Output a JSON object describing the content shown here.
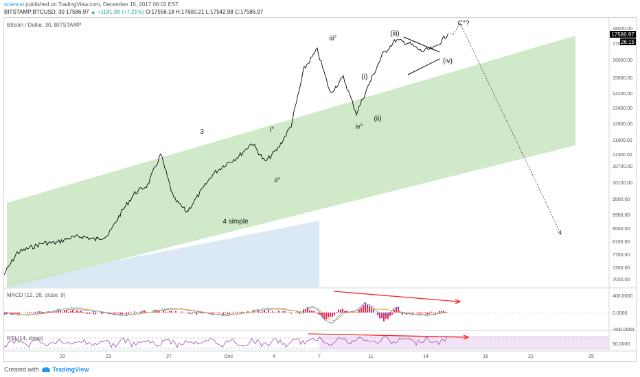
{
  "header": {
    "user": "sciencei",
    "published": "published on TradingView.com, December 15, 2017 06:03 EST",
    "symbol": "BITSTAMP:BTCUSD, 30",
    "last": "17586.97",
    "change": "▲ +1181.98 (+7.21%)",
    "o": "O:17556.18",
    "h": "H:17600.21",
    "l": "L:17542.98",
    "c": "C:17586.97"
  },
  "pane_title": "Bitcoin / Dollar, 30, BITSTAMP",
  "macd_title": "MACD (12, 26, close, 9)",
  "rsi_title": "RSI (14, close)",
  "footer": {
    "created": "Created with",
    "brand": "TradingView"
  },
  "colors": {
    "channel": "#c8e6c0",
    "lower_box": "#dbe9f5",
    "divergence": "#ff2020",
    "macd_line": "#2196f3",
    "signal_line": "#ff9800",
    "histogram": "#e91e63",
    "rsi": "#9c27b0",
    "price_tag": "#000000"
  },
  "chart_data": {
    "type": "line",
    "title": "Bitcoin / Dollar, 30, BITSTAMP",
    "x_tick_labels": [
      "20",
      "23",
      "27",
      "Dec",
      "4",
      "7",
      "11",
      "14",
      "18",
      "21",
      "25"
    ],
    "price_ticks": [
      "18000.00",
      "17000.00",
      "16000.00",
      "15000.00",
      "14200.00",
      "13400.00",
      "12600.00",
      "11800.00",
      "11300.00",
      "10700.00",
      "10100.00",
      "9500.00",
      "8900.00",
      "8500.00",
      "8100.00",
      "7700.00",
      "7350.00",
      "7030.00"
    ],
    "macd_ticks": [
      "400.0000",
      "0.0000",
      "-400.0000"
    ],
    "rsi_ticks": [
      "50.0000"
    ],
    "last_price_tag": "17586.97",
    "countdown_tag": "26:15",
    "wave_labels": [
      "3",
      "4 simple",
      "i°",
      "ii°",
      "iii°",
      "iv°",
      "(i)",
      "(ii)",
      "(iii)",
      "(iv)",
      "C°?"
    ],
    "price_series": [
      {
        "date": "Nov 17",
        "value": 7150
      },
      {
        "date": "Nov 18",
        "value": 7750
      },
      {
        "date": "Nov 19",
        "value": 7900
      },
      {
        "date": "Nov 20",
        "value": 8050
      },
      {
        "date": "Nov 21",
        "value": 8050
      },
      {
        "date": "Nov 22",
        "value": 8200
      },
      {
        "date": "Nov 23",
        "value": 8250
      },
      {
        "date": "Nov 24",
        "value": 8150
      },
      {
        "date": "Nov 25",
        "value": 8300
      },
      {
        "date": "Nov 26",
        "value": 9000
      },
      {
        "date": "Nov 27",
        "value": 9700
      },
      {
        "date": "Nov 28",
        "value": 10000
      },
      {
        "date": "Nov 29",
        "value": 11300
      },
      {
        "date": "Nov 29 pm",
        "value": 9500
      },
      {
        "date": "Nov 30",
        "value": 9000
      },
      {
        "date": "Nov 30 pm",
        "value": 9700
      },
      {
        "date": "Dec 1",
        "value": 10400
      },
      {
        "date": "Dec 2",
        "value": 10800
      },
      {
        "date": "Dec 3",
        "value": 11200
      },
      {
        "date": "Dec 4",
        "value": 11700
      },
      {
        "date": "Dec 4 pm",
        "value": 10900
      },
      {
        "date": "Dec 5",
        "value": 11500
      },
      {
        "date": "Dec 6",
        "value": 12500
      },
      {
        "date": "Dec 7",
        "value": 15500
      },
      {
        "date": "Dec 8",
        "value": 16600
      },
      {
        "date": "Dec 8 pm",
        "value": 14200
      },
      {
        "date": "Dec 9",
        "value": 15000
      },
      {
        "date": "Dec 10",
        "value": 13100
      },
      {
        "date": "Dec 10 pm",
        "value": 14700
      },
      {
        "date": "Dec 11",
        "value": 16300
      },
      {
        "date": "Dec 12",
        "value": 17200
      },
      {
        "date": "Dec 12 pm",
        "value": 17000
      },
      {
        "date": "Dec 13",
        "value": 16500
      },
      {
        "date": "Dec 14",
        "value": 16700
      },
      {
        "date": "Dec 15",
        "value": 17600
      }
    ]
  }
}
